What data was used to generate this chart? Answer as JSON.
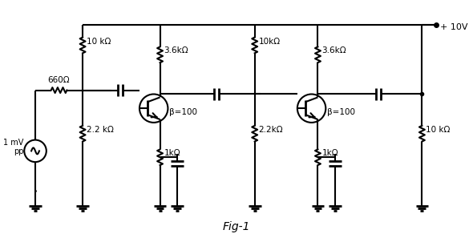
{
  "title": "Fig-1",
  "background_color": "#ffffff",
  "line_color": "#000000",
  "line_width": 1.5,
  "labels": {
    "vcc": "+ 10V",
    "r1": "10 kΩ",
    "r2": "3.6kΩ",
    "r3": "10kΩ",
    "r4": "3.6kΩ",
    "r5": "660Ω",
    "r6": "2.2 kΩ",
    "r7": "1kΩ",
    "r8": "2.2kΩ",
    "r9": "1kΩ",
    "r10": "10 kΩ",
    "beta1": "β=100",
    "beta2": "β=100",
    "source": "1 mV\npp"
  },
  "figsize": [
    5.9,
    2.97
  ],
  "dpi": 100
}
